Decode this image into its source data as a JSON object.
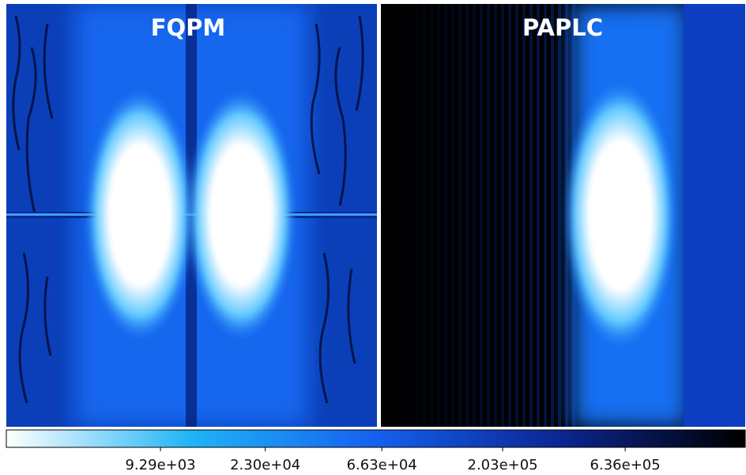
{
  "chart_data": {
    "type": "image",
    "panels": [
      {
        "title": "FQPM"
      },
      {
        "title": "PAPLC"
      }
    ],
    "colorbar": {
      "scale": "log",
      "clim": [
        3000,
        1953000
      ],
      "ticks": [
        {
          "value": 9290,
          "label": "9.29e+03"
        },
        {
          "value": 23000,
          "label": "2.30e+04"
        },
        {
          "value": 66300,
          "label": "6.63e+04"
        },
        {
          "value": 203000,
          "label": "2.03e+05"
        },
        {
          "value": 636000,
          "label": "6.36e+05"
        }
      ],
      "colors": [
        "#ffffff",
        "#1fb4f5",
        "#1560f0",
        "#0a2690",
        "#000000"
      ]
    }
  }
}
